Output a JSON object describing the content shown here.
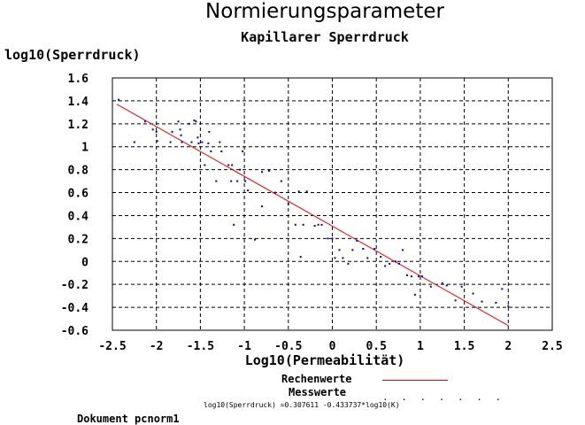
{
  "chart_data": {
    "type": "scatter",
    "title": "Normierungsparameter",
    "subtitle": "Kapillarer Sperrdruck",
    "xlabel": "Log10(Permeabilität)",
    "ylabel": "log10(Sperrdruck)",
    "xlim": [
      -2.5,
      2.5
    ],
    "ylim": [
      -0.6,
      1.6
    ],
    "xticks": [
      -2.5,
      -2,
      -1.5,
      -1,
      -0.5,
      0,
      0.5,
      1,
      1.5,
      2,
      2.5
    ],
    "xtick_labels": [
      "-2.5",
      "-2",
      "-1.5",
      "-1",
      "-0.5",
      "0",
      "0.5",
      "1",
      "1.5",
      "2",
      "2.5"
    ],
    "yticks": [
      1.6,
      1.4,
      1.2,
      1,
      0.8,
      0.6,
      0.4,
      0.2,
      0,
      -0.2,
      -0.4,
      -0.6
    ],
    "ytick_labels": [
      "1.6",
      "1.4",
      "1.2",
      "1",
      "0.8",
      "0.6",
      "0.4",
      "0.2",
      "0",
      "-0.2",
      "-0.4",
      "-0.6"
    ],
    "grid": true,
    "legend_position": "bottom",
    "series": [
      {
        "name": "Rechenwerte",
        "kind": "line",
        "color": "#ff0000",
        "intercept": 0.307611,
        "slope": -0.433737,
        "x": [
          -2.45,
          2.0
        ]
      },
      {
        "name": "Messwerte",
        "kind": "scatter",
        "color": "#0000cc",
        "points": [
          [
            -2.43,
            1.41
          ],
          [
            -2.25,
            1.04
          ],
          [
            -2.13,
            1.22
          ],
          [
            -2.04,
            1.15
          ],
          [
            -2.0,
            1.13
          ],
          [
            -1.99,
            1.05
          ],
          [
            -1.84,
            1.04
          ],
          [
            -1.82,
            1.13
          ],
          [
            -1.75,
            1.22
          ],
          [
            -1.73,
            1.15
          ],
          [
            -1.72,
            1.1
          ],
          [
            -1.71,
            1.04
          ],
          [
            -1.63,
            1.2
          ],
          [
            -1.6,
            1.04
          ],
          [
            -1.57,
            1.23
          ],
          [
            -1.55,
            1.22
          ],
          [
            -1.53,
            1.08
          ],
          [
            -1.52,
            1.03
          ],
          [
            -1.48,
            1.04
          ],
          [
            -1.45,
            0.84
          ],
          [
            -1.41,
            1.03
          ],
          [
            -1.4,
            1.13
          ],
          [
            -1.38,
            0.96
          ],
          [
            -1.32,
            0.7
          ],
          [
            -1.28,
            1.04
          ],
          [
            -1.26,
            0.96
          ],
          [
            -1.18,
            0.84
          ],
          [
            -1.15,
            0.7
          ],
          [
            -1.14,
            0.84
          ],
          [
            -1.12,
            0.32
          ],
          [
            -1.08,
            0.7
          ],
          [
            -1.05,
            0.8
          ],
          [
            -1.02,
            0.96
          ],
          [
            -0.99,
            0.7
          ],
          [
            -0.96,
            0.62
          ],
          [
            -0.88,
            0.19
          ],
          [
            -0.8,
            0.48
          ],
          [
            -0.8,
            0.78
          ],
          [
            -0.72,
            0.79
          ],
          [
            -0.65,
            0.6
          ],
          [
            -0.58,
            0.7
          ],
          [
            -0.5,
            0.5
          ],
          [
            -0.42,
            0.32
          ],
          [
            -0.38,
            0.61
          ],
          [
            -0.36,
            0.04
          ],
          [
            -0.33,
            0.32
          ],
          [
            -0.29,
            0.61
          ],
          [
            -0.2,
            0.31
          ],
          [
            -0.16,
            0.32
          ],
          [
            -0.12,
            0.32
          ],
          [
            -0.05,
            0.2
          ],
          [
            0.0,
            0.2
          ],
          [
            0.03,
            0.03
          ],
          [
            0.08,
            0.1
          ],
          [
            0.12,
            0.03
          ],
          [
            0.18,
            -0.02
          ],
          [
            0.23,
            0.1
          ],
          [
            0.28,
            0.18
          ],
          [
            0.35,
            0.11
          ],
          [
            0.4,
            0.03
          ],
          [
            0.48,
            0.11
          ],
          [
            0.55,
            0.04
          ],
          [
            0.6,
            -0.04
          ],
          [
            0.65,
            -0.02
          ],
          [
            0.72,
            0.0
          ],
          [
            0.76,
            -0.02
          ],
          [
            0.8,
            0.1
          ],
          [
            0.85,
            -0.12
          ],
          [
            0.9,
            -0.13
          ],
          [
            0.94,
            -0.29
          ],
          [
            0.98,
            -0.13
          ],
          [
            1.02,
            -0.13
          ],
          [
            1.12,
            -0.22
          ],
          [
            1.25,
            -0.19
          ],
          [
            1.3,
            -0.21
          ],
          [
            1.4,
            -0.34
          ],
          [
            1.47,
            -0.22
          ],
          [
            1.6,
            -0.28
          ],
          [
            1.7,
            -0.35
          ],
          [
            1.86,
            -0.36
          ],
          [
            1.93,
            -0.24
          ],
          [
            2.0,
            -0.39
          ]
        ]
      }
    ]
  },
  "legend": {
    "line_label": "Rechenwerte",
    "point_label": "Messwerte",
    "point_swatch": ". . . . . . ."
  },
  "formula": "log10(Sperrdruck) =0.307611 -0.433737*log10(K)",
  "footer": "Dokument pcnorm1"
}
